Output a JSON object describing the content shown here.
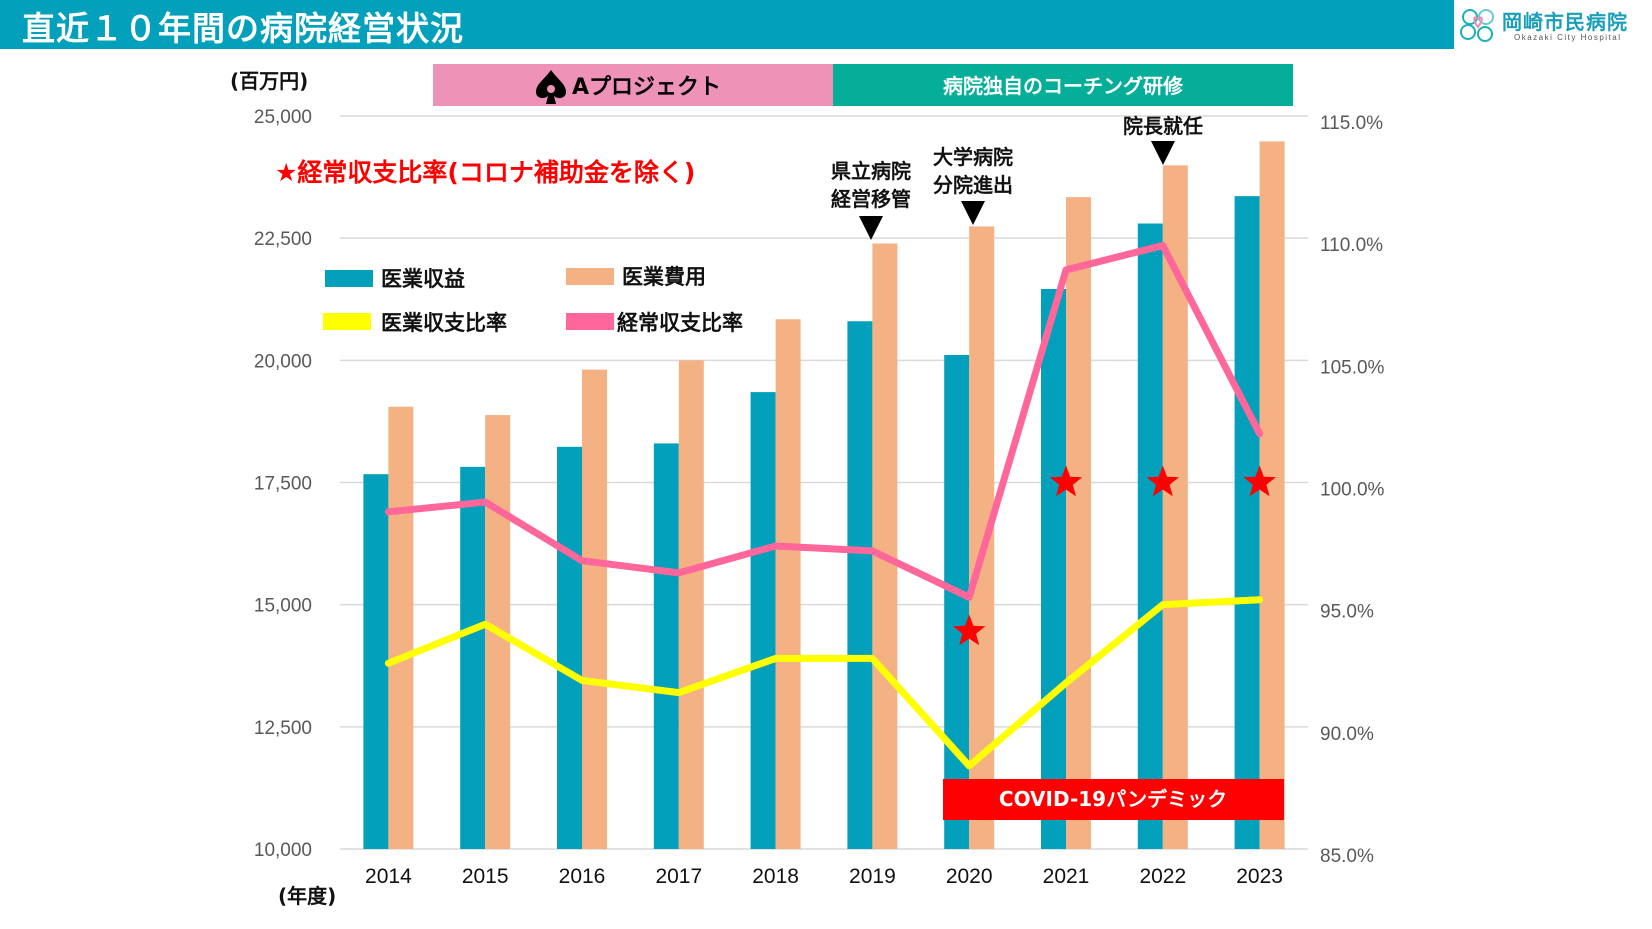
{
  "header": {
    "title": "直近１０年間の病院経営状況",
    "logo_name": "岡崎市民病院",
    "logo_subtitle": "Okazaki City Hospital"
  },
  "annotations": {
    "unit_left": "(百万円)",
    "unit_x": "(年度)",
    "project_a": "Aプロジェクト",
    "coaching": "病院独自のコーチング研修",
    "star_note": "★経常収支比率(コロナ補助金を除く)",
    "event_2019_line1": "県立病院",
    "event_2019_line2": "経営移管",
    "event_2020_line1": "大学病院",
    "event_2020_line2": "分院進出",
    "event_2022": "院長就任",
    "covid": "COVID-19パンデミック"
  },
  "colors": {
    "header": "#02a0ba",
    "revenue": "#02a0ba",
    "expense": "#f4b183",
    "medical_ratio": "#ffff00",
    "ordinary_ratio": "#ff6699",
    "star": "#ff0000",
    "project_a": "#ee92b8",
    "coaching": "#04ae98",
    "covid": "#ff0000"
  },
  "chart_data": {
    "type": "bar",
    "title": "",
    "categories": [
      "2014",
      "2015",
      "2016",
      "2017",
      "2018",
      "2019",
      "2020",
      "2021",
      "2022",
      "2023"
    ],
    "xlabel": "(年度)",
    "ylabel": "(百万円)",
    "ylim": [
      10000,
      25000
    ],
    "yticks": [
      "10,000",
      "12,500",
      "15,000",
      "17,500",
      "20,000",
      "22,500",
      "25,000"
    ],
    "y2lim": [
      85,
      115
    ],
    "y2ticks": [
      "85.0%",
      "90.0%",
      "95.0%",
      "100.0%",
      "105.0%",
      "110.0%",
      "115.0%"
    ],
    "grid": true,
    "legend_position": "upper-left inside plot",
    "series": [
      {
        "name": "医業収益",
        "type": "bar",
        "axis": "left",
        "values": [
          17670,
          17820,
          18230,
          18300,
          19350,
          20800,
          20110,
          21460,
          22800,
          23360
        ]
      },
      {
        "name": "医業費用",
        "type": "bar",
        "axis": "left",
        "values": [
          19050,
          18880,
          19810,
          20000,
          20840,
          22390,
          22740,
          23340,
          23990,
          24480
        ]
      },
      {
        "name": "医業収支比率",
        "type": "line",
        "axis": "right",
        "unit": "%",
        "values": [
          92.6,
          94.2,
          91.9,
          91.4,
          92.8,
          92.8,
          88.4,
          91.8,
          95.0,
          95.2
        ]
      },
      {
        "name": "経常収支比率",
        "type": "line",
        "axis": "right",
        "unit": "%",
        "values": [
          98.8,
          99.2,
          96.8,
          96.3,
          97.4,
          97.2,
          95.3,
          108.7,
          109.7,
          102.0
        ]
      },
      {
        "name": "経常収支比率(コロナ補助金を除く)",
        "type": "scatter",
        "marker": "star",
        "axis": "right",
        "unit": "%",
        "categories": [
          "2020",
          "2021",
          "2022",
          "2023"
        ],
        "values": [
          93.9,
          100.0,
          100.0,
          100.0
        ]
      }
    ],
    "period_bands": [
      {
        "label": "Aプロジェクト",
        "from": "2014",
        "to": "2018"
      },
      {
        "label": "病院独自のコーチング研修",
        "from": "2019",
        "to": "2023"
      },
      {
        "label": "COVID-19パンデミック",
        "from": "2020",
        "to": "2023"
      }
    ],
    "event_markers": [
      {
        "year": "2019",
        "label": "県立病院経営移管"
      },
      {
        "year": "2020",
        "label": "大学病院分院進出"
      },
      {
        "year": "2022",
        "label": "院長就任"
      }
    ]
  }
}
